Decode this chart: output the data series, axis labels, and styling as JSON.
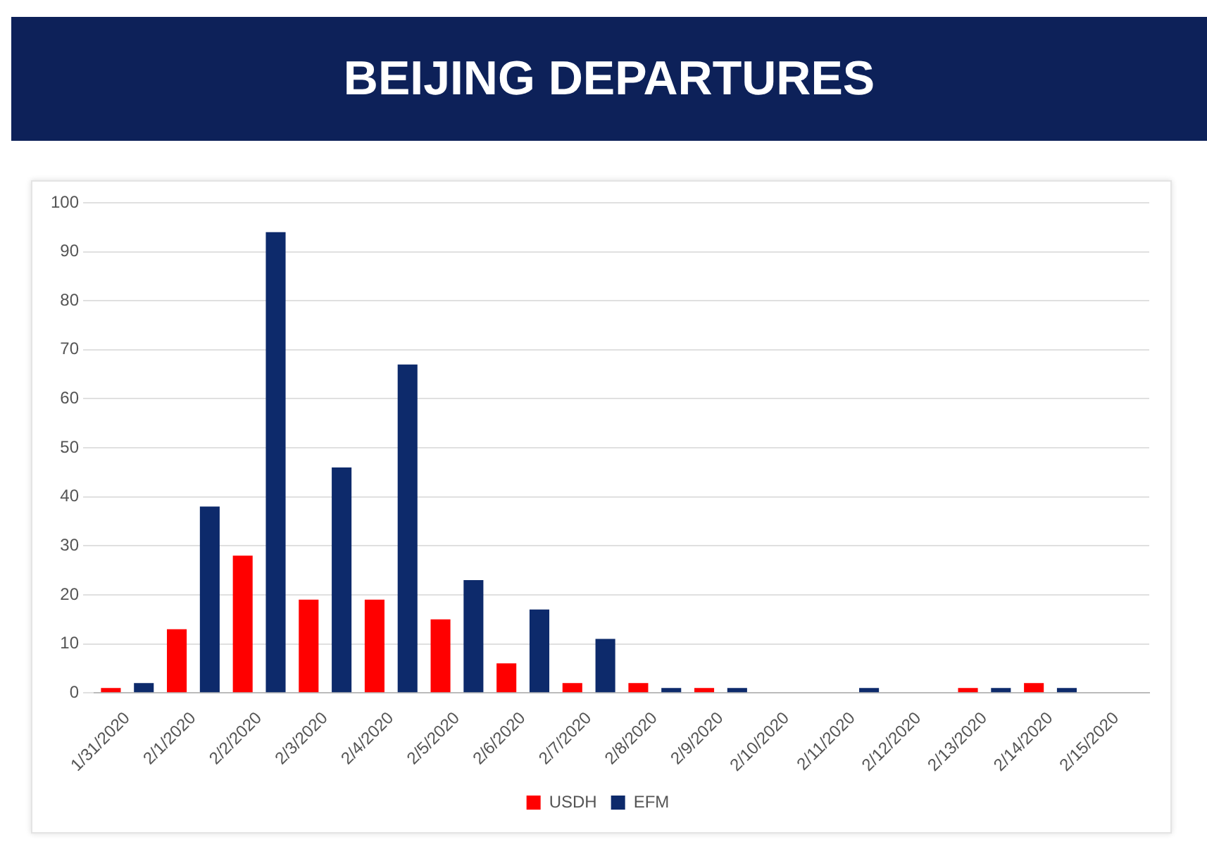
{
  "chart_data": {
    "type": "bar",
    "title": "BEIJING DEPARTURES",
    "categories": [
      "1/31/2020",
      "2/1/2020",
      "2/2/2020",
      "2/3/2020",
      "2/4/2020",
      "2/5/2020",
      "2/6/2020",
      "2/7/2020",
      "2/8/2020",
      "2/9/2020",
      "2/10/2020",
      "2/11/2020",
      "2/12/2020",
      "2/13/2020",
      "2/14/2020",
      "2/15/2020"
    ],
    "series": [
      {
        "name": "USDH",
        "color": "#ff0000",
        "values": [
          1,
          13,
          28,
          19,
          19,
          15,
          6,
          2,
          2,
          1,
          0,
          0,
          0,
          1,
          2,
          0
        ]
      },
      {
        "name": "EFM",
        "color": "#0d2a6b",
        "values": [
          2,
          38,
          94,
          46,
          67,
          23,
          17,
          11,
          1,
          1,
          0,
          1,
          0,
          1,
          1,
          0
        ]
      }
    ],
    "ylim": [
      0,
      100
    ],
    "yticks": [
      0,
      10,
      20,
      30,
      40,
      50,
      60,
      70,
      80,
      90,
      100
    ],
    "grid": "y",
    "legend": "bottom"
  }
}
